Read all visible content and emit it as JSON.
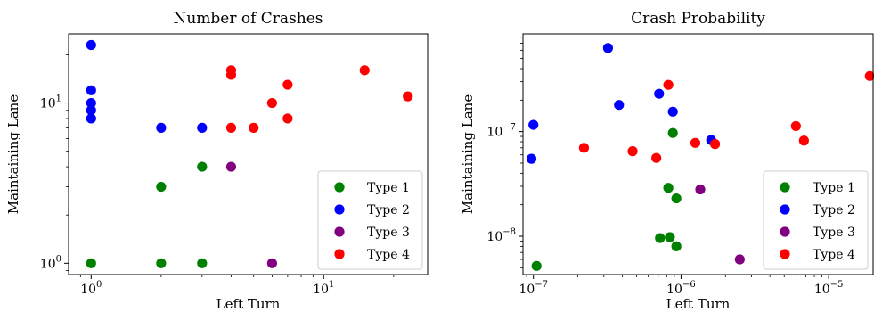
{
  "chart_data": [
    {
      "type": "scatter",
      "title": "Number of Crashes",
      "xlabel": "Left Turn",
      "ylabel": "Maintaining Lane",
      "xscale": "log",
      "yscale": "log",
      "xlim": [
        0.8,
        28
      ],
      "ylim": [
        0.85,
        27
      ],
      "x_major_ticks": [
        {
          "value": 1,
          "label": "10",
          "exp": "0"
        },
        {
          "value": 10,
          "label": "10",
          "exp": "1"
        }
      ],
      "y_major_ticks": [
        {
          "value": 1,
          "label": "10",
          "exp": "0"
        },
        {
          "value": 10,
          "label": "10",
          "exp": "1"
        }
      ],
      "legend_position": "lower-right",
      "grid": false,
      "series": [
        {
          "name": "Type 1",
          "color": "#008000",
          "points": [
            [
              1,
              1
            ],
            [
              2,
              1
            ],
            [
              3,
              1
            ],
            [
              2,
              3
            ],
            [
              3,
              4
            ]
          ]
        },
        {
          "name": "Type 2",
          "color": "#0000ff",
          "points": [
            [
              1,
              8
            ],
            [
              1,
              9
            ],
            [
              1,
              10
            ],
            [
              1,
              12
            ],
            [
              1,
              23
            ],
            [
              2,
              7
            ],
            [
              3,
              7
            ]
          ]
        },
        {
          "name": "Type 3",
          "color": "#800080",
          "points": [
            [
              4,
              4
            ],
            [
              6,
              1
            ]
          ]
        },
        {
          "name": "Type 4",
          "color": "#ff0000",
          "points": [
            [
              4,
              7
            ],
            [
              5,
              7
            ],
            [
              4,
              15
            ],
            [
              4,
              16
            ],
            [
              6,
              10
            ],
            [
              7,
              8
            ],
            [
              7,
              13
            ],
            [
              15,
              16
            ],
            [
              23,
              11
            ]
          ]
        }
      ]
    },
    {
      "type": "scatter",
      "title": "Crash Probability",
      "xlabel": "Left Turn",
      "ylabel": "Maintaining Lane",
      "xscale": "log",
      "yscale": "log",
      "xlim": [
        8.5e-08,
        2e-05
      ],
      "ylim": [
        4.3e-09,
        8.6e-07
      ],
      "x_major_ticks": [
        {
          "value": 1e-07,
          "label": "10",
          "exp": "−7"
        },
        {
          "value": 1e-06,
          "label": "10",
          "exp": "−6"
        },
        {
          "value": 1e-05,
          "label": "10",
          "exp": "−5"
        }
      ],
      "y_major_ticks": [
        {
          "value": 1e-08,
          "label": "10",
          "exp": "−8"
        },
        {
          "value": 1e-07,
          "label": "10",
          "exp": "−7"
        }
      ],
      "legend_position": "lower-right",
      "grid": false,
      "series": [
        {
          "name": "Type 1",
          "color": "#008000",
          "points": [
            [
              1.05e-07,
              5.2e-09
            ],
            [
              7.2e-07,
              9.6e-09
            ],
            [
              8.4e-07,
              9.8e-09
            ],
            [
              9.3e-07,
              8e-09
            ],
            [
              8.2e-07,
              2.9e-08
            ],
            [
              9.3e-07,
              2.3e-08
            ],
            [
              8.8e-07,
              9.7e-08
            ]
          ]
        },
        {
          "name": "Type 2",
          "color": "#0000ff",
          "points": [
            [
              9.7e-08,
              5.5e-08
            ],
            [
              1e-07,
              1.16e-07
            ],
            [
              3.2e-07,
              6.3e-07
            ],
            [
              3.8e-07,
              1.8e-07
            ],
            [
              7.1e-07,
              2.3e-07
            ],
            [
              8.8e-07,
              1.55e-07
            ],
            [
              1.6e-06,
              8.3e-08
            ]
          ]
        },
        {
          "name": "Type 3",
          "color": "#800080",
          "points": [
            [
              1.35e-06,
              2.8e-08
            ],
            [
              2.5e-06,
              6e-09
            ]
          ]
        },
        {
          "name": "Type 4",
          "color": "#ff0000",
          "points": [
            [
              2.2e-07,
              7e-08
            ],
            [
              4.7e-07,
              6.5e-08
            ],
            [
              6.8e-07,
              5.6e-08
            ],
            [
              8.2e-07,
              2.8e-07
            ],
            [
              1.25e-06,
              7.8e-08
            ],
            [
              1.7e-06,
              7.6e-08
            ],
            [
              6e-06,
              1.13e-07
            ],
            [
              6.8e-06,
              8.2e-08
            ],
            [
              1.9e-05,
              3.4e-07
            ]
          ]
        }
      ]
    }
  ]
}
